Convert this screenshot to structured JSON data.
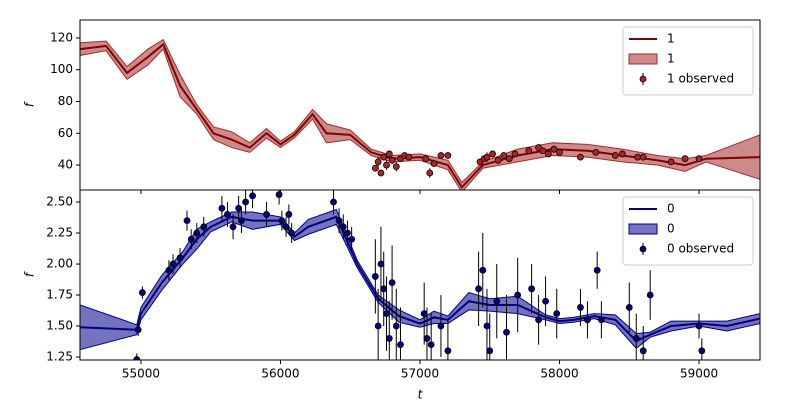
{
  "chart_data": [
    {
      "type": "line",
      "ylabel": "f",
      "x": [
        54563,
        54750,
        54900,
        55050,
        55160,
        55280,
        55400,
        55520,
        55650,
        55780,
        55900,
        56000,
        56100,
        56230,
        56330,
        56500,
        56650,
        56800,
        57000,
        57200,
        57300,
        57450,
        57700,
        57950,
        58200,
        58450,
        58700,
        58900,
        59050,
        59437
      ],
      "series": [
        {
          "name": "1",
          "color": "#800000",
          "values": [
            113,
            115,
            98,
            108,
            116,
            90,
            75,
            60,
            56,
            51,
            60,
            53,
            59,
            72,
            60,
            59,
            48,
            44,
            45,
            40,
            26,
            40,
            46,
            50,
            49,
            46,
            43,
            40,
            44,
            45
          ]
        }
      ],
      "band": {
        "name": "1",
        "color": "#a52a2a",
        "lower": [
          109,
          112,
          94,
          103,
          113,
          83,
          72,
          56,
          51,
          48,
          57,
          51,
          57,
          69,
          54,
          56,
          46,
          42,
          43,
          37,
          23,
          38,
          42,
          46,
          45,
          42,
          40,
          36,
          42,
          31
        ],
        "upper": [
          117,
          118,
          102,
          113,
          119,
          97,
          78,
          64,
          61,
          54,
          63,
          55,
          61,
          75,
          66,
          62,
          50,
          46,
          47,
          43,
          29,
          42,
          50,
          54,
          53,
          50,
          46,
          44,
          46,
          59
        ]
      },
      "observed": {
        "name": "1 observed",
        "color": "#b22222",
        "x": [
          56680,
          56700,
          56720,
          56740,
          56760,
          56780,
          56800,
          56830,
          56860,
          56890,
          56920,
          57040,
          57070,
          57100,
          57150,
          57200,
          57430,
          57460,
          57480,
          57520,
          57560,
          57600,
          57640,
          57680,
          57780,
          57850,
          57880,
          57920,
          57960,
          58000,
          58150,
          58260,
          58400,
          58450,
          58560,
          58600,
          58800,
          58900,
          59000
        ],
        "values": [
          38,
          42,
          35,
          45,
          40,
          47,
          43,
          39,
          44,
          46,
          45,
          44,
          35,
          41,
          46,
          46,
          42,
          44,
          45,
          47,
          43,
          46,
          44,
          47,
          49,
          51,
          49,
          47,
          50,
          48,
          45,
          48,
          46,
          47,
          45,
          45,
          42,
          44,
          44
        ],
        "errors": [
          2,
          3,
          2,
          2,
          3,
          2,
          2,
          3,
          2,
          2,
          2,
          2,
          3,
          2,
          2,
          2,
          2,
          2,
          3,
          2,
          2,
          2,
          2,
          2,
          2,
          2,
          2,
          2,
          2,
          2,
          2,
          2,
          2,
          2,
          2,
          2,
          2,
          2,
          2
        ]
      },
      "xlim": [
        54563,
        59437
      ],
      "ylim": [
        24.3,
        131.3
      ],
      "yticks": [
        40,
        60,
        80,
        100,
        120
      ],
      "legend": "upper right"
    },
    {
      "type": "line",
      "ylabel": "f",
      "xlabel": "t",
      "x": [
        54563,
        54970,
        55000,
        55150,
        55300,
        55400,
        55500,
        55650,
        55800,
        56000,
        56100,
        56200,
        56400,
        56550,
        56700,
        56850,
        57000,
        57100,
        57200,
        57350,
        57500,
        57700,
        57900,
        58000,
        58100,
        58250,
        58400,
        58550,
        58650,
        58800,
        59000,
        59200,
        59437
      ],
      "series": [
        {
          "name": "0",
          "color": "#000080",
          "values": [
            1.49,
            1.47,
            1.6,
            1.85,
            2.05,
            2.2,
            2.3,
            2.38,
            2.35,
            2.35,
            2.22,
            2.3,
            2.38,
            2.0,
            1.72,
            1.58,
            1.52,
            1.57,
            1.55,
            1.7,
            1.67,
            1.67,
            1.57,
            1.54,
            1.55,
            1.58,
            1.55,
            1.38,
            1.43,
            1.5,
            1.52,
            1.5,
            1.56
          ]
        }
      ],
      "band": {
        "name": "0",
        "color": "#00008b",
        "lower": [
          1.31,
          1.43,
          1.55,
          1.79,
          2.0,
          2.12,
          2.26,
          2.34,
          2.28,
          2.32,
          2.19,
          2.24,
          2.32,
          1.97,
          1.69,
          1.53,
          1.49,
          1.52,
          1.52,
          1.63,
          1.62,
          1.6,
          1.55,
          1.52,
          1.53,
          1.56,
          1.51,
          1.32,
          1.41,
          1.46,
          1.5,
          1.46,
          1.52
        ],
        "upper": [
          1.67,
          1.51,
          1.65,
          1.91,
          2.1,
          2.28,
          2.34,
          2.42,
          2.42,
          2.38,
          2.25,
          2.36,
          2.44,
          2.03,
          1.75,
          1.63,
          1.55,
          1.62,
          1.58,
          1.77,
          1.72,
          1.74,
          1.59,
          1.56,
          1.57,
          1.6,
          1.59,
          1.44,
          1.45,
          1.54,
          1.54,
          1.54,
          1.6
        ]
      },
      "observed": {
        "name": "0 observed",
        "color": "#000080",
        "x": [
          54970,
          54980,
          55010,
          55200,
          55230,
          55280,
          55330,
          55360,
          55400,
          55450,
          55580,
          55620,
          55660,
          55700,
          55720,
          55750,
          55800,
          55900,
          55990,
          56010,
          56040,
          56060,
          56080,
          56380,
          56420,
          56450,
          56480,
          56510,
          56680,
          56700,
          56720,
          56740,
          56760,
          56780,
          56800,
          56830,
          56860,
          57030,
          57050,
          57080,
          57150,
          57200,
          57420,
          57450,
          57480,
          57500,
          57550,
          57620,
          57700,
          57800,
          57850,
          57900,
          57980,
          58150,
          58200,
          58270,
          58300,
          58500,
          58550,
          58600,
          58650,
          59000,
          59020
        ],
        "values": [
          1.23,
          1.47,
          1.77,
          1.95,
          2.0,
          2.05,
          2.35,
          2.2,
          2.25,
          2.3,
          2.45,
          2.4,
          2.3,
          2.45,
          2.35,
          2.5,
          2.55,
          2.4,
          2.56,
          2.35,
          2.3,
          2.4,
          2.25,
          2.5,
          2.35,
          2.3,
          2.25,
          2.2,
          1.9,
          1.5,
          2.0,
          1.8,
          1.6,
          1.4,
          1.85,
          1.5,
          1.35,
          1.6,
          1.4,
          1.35,
          1.5,
          1.3,
          1.8,
          1.95,
          1.5,
          1.3,
          1.7,
          1.45,
          1.75,
          1.8,
          1.55,
          1.7,
          1.6,
          1.65,
          1.55,
          1.95,
          1.55,
          1.65,
          1.4,
          1.3,
          1.75,
          1.5,
          1.3
        ],
        "errors": [
          0.05,
          0.05,
          0.05,
          0.08,
          0.08,
          0.08,
          0.08,
          0.08,
          0.08,
          0.08,
          0.1,
          0.1,
          0.1,
          0.1,
          0.1,
          0.1,
          0.1,
          0.1,
          0.08,
          0.08,
          0.08,
          0.08,
          0.08,
          0.1,
          0.1,
          0.1,
          0.1,
          0.1,
          0.3,
          0.3,
          0.3,
          0.3,
          0.3,
          0.3,
          0.3,
          0.3,
          0.3,
          0.25,
          0.25,
          0.25,
          0.25,
          0.25,
          0.3,
          0.3,
          0.3,
          0.3,
          0.3,
          0.3,
          0.3,
          0.2,
          0.2,
          0.2,
          0.2,
          0.15,
          0.15,
          0.15,
          0.15,
          0.2,
          0.2,
          0.2,
          0.2,
          0.1,
          0.1
        ]
      },
      "xlim": [
        54563,
        59437
      ],
      "ylim": [
        1.226,
        2.597
      ],
      "xticks": [
        55000,
        56000,
        57000,
        58000,
        59000
      ],
      "yticks": [
        {
          "value": 1.25,
          "label": "1.25"
        },
        {
          "value": 1.5,
          "label": "1.50"
        },
        {
          "value": 1.75,
          "label": "1.75"
        },
        {
          "value": 2.0,
          "label": "2.00"
        },
        {
          "value": 2.25,
          "label": "2.25"
        },
        {
          "value": 2.5,
          "label": "2.50"
        }
      ],
      "legend": "upper right"
    }
  ]
}
